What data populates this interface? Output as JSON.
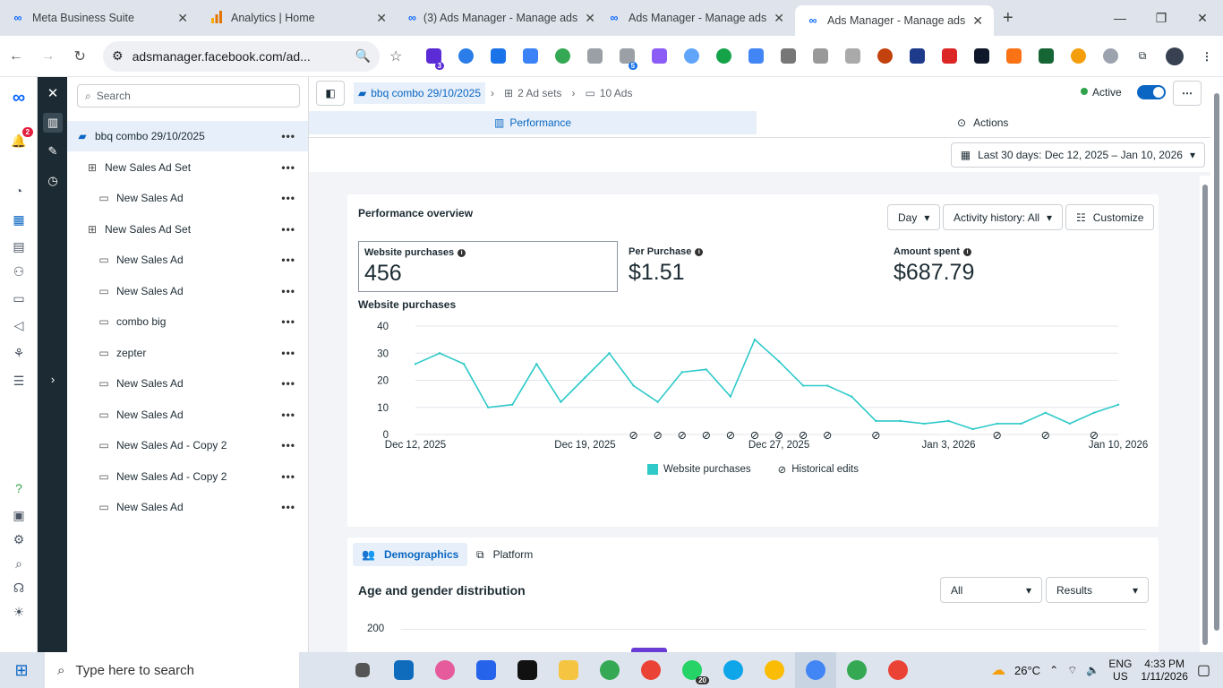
{
  "browser": {
    "tabs": [
      {
        "title": "Meta Business Suite",
        "icon": "meta-icon"
      },
      {
        "title": "Analytics | Home",
        "icon": "analytics-icon"
      },
      {
        "title": "(3) Ads Manager - Manage ads",
        "icon": "meta-icon"
      },
      {
        "title": "Ads Manager - Manage ads",
        "icon": "meta-icon"
      },
      {
        "title": "Ads Manager - Manage ads",
        "icon": "meta-icon"
      }
    ],
    "url": "adsmanager.facebook.com/ad...",
    "extension_badges": {
      "ext1": "3",
      "ext2": "5"
    }
  },
  "left_rail": {
    "notification_count": "2"
  },
  "tree": {
    "search_placeholder": "Search",
    "items": [
      {
        "label": "bbq combo 29/10/2025",
        "level": 0,
        "type": "campaign"
      },
      {
        "label": "New Sales Ad Set",
        "level": 1,
        "type": "adset"
      },
      {
        "label": "New Sales Ad",
        "level": 2,
        "type": "ad"
      },
      {
        "label": "New Sales Ad Set",
        "level": 1,
        "type": "adset"
      },
      {
        "label": "New Sales Ad",
        "level": 2,
        "type": "ad"
      },
      {
        "label": "New Sales Ad",
        "level": 2,
        "type": "ad"
      },
      {
        "label": "combo big",
        "level": 2,
        "type": "ad"
      },
      {
        "label": "zepter",
        "level": 2,
        "type": "ad"
      },
      {
        "label": "New Sales Ad",
        "level": 2,
        "type": "ad"
      },
      {
        "label": "New Sales Ad",
        "level": 2,
        "type": "ad"
      },
      {
        "label": "New Sales Ad - Copy 2",
        "level": 2,
        "type": "ad"
      },
      {
        "label": "New Sales Ad - Copy 2",
        "level": 2,
        "type": "ad"
      },
      {
        "label": "New Sales Ad",
        "level": 2,
        "type": "ad"
      }
    ]
  },
  "header": {
    "crumb_campaign": "bbq combo 29/10/2025",
    "crumb_adsets": "2 Ad sets",
    "crumb_ads": "10 Ads",
    "status": "Active",
    "status_color": "#31a24c",
    "tab_performance": "Performance",
    "tab_actions": "Actions",
    "date_range": "Last 30 days: Dec 12, 2025 – Jan 10, 2026"
  },
  "overview": {
    "title": "Performance overview",
    "granularity": "Day",
    "activity": "Activity history: All",
    "customize": "Customize",
    "kpis": [
      {
        "label": "Website purchases",
        "value": "456"
      },
      {
        "label": "Per Purchase",
        "value": "$1.51"
      },
      {
        "label": "Amount spent",
        "value": "$687.79"
      }
    ],
    "chart_title": "Website purchases"
  },
  "chart_data": {
    "type": "line",
    "title": "Website purchases",
    "x_tick_labels": [
      "Dec 12, 2025",
      "Dec 19, 2025",
      "Dec 27, 2025",
      "Jan 3, 2026",
      "Jan 10, 2026"
    ],
    "y_ticks": [
      0,
      10,
      20,
      30,
      40
    ],
    "ylim": [
      0,
      40
    ],
    "series": [
      {
        "name": "Website purchases",
        "color": "#2fc9c9",
        "values": [
          26,
          30,
          26,
          10,
          11,
          26,
          12,
          21,
          30,
          18,
          12,
          23,
          24,
          14,
          35,
          27,
          18,
          18,
          14,
          5,
          5,
          4,
          5,
          2,
          4,
          4,
          8,
          4,
          8,
          11
        ]
      }
    ],
    "historical_edit_days": [
      9,
      10,
      11,
      12,
      13,
      14,
      15,
      16,
      17,
      19,
      24,
      26,
      28
    ],
    "legend": [
      "Website purchases",
      "Historical edits"
    ],
    "legend_position": "bottom"
  },
  "demographics": {
    "tab_demographics": "Demographics",
    "tab_platform": "Platform",
    "title": "Age and gender distribution",
    "filter_all": "All",
    "filter_results": "Results",
    "y_tick": "200",
    "bar_color": "#6a3cd6"
  },
  "taskbar": {
    "search_placeholder": "Type here to search",
    "badge": "20",
    "weather": "26°C",
    "lang1": "ENG",
    "lang2": "US",
    "time": "4:33 PM",
    "date": "1/11/2026"
  }
}
